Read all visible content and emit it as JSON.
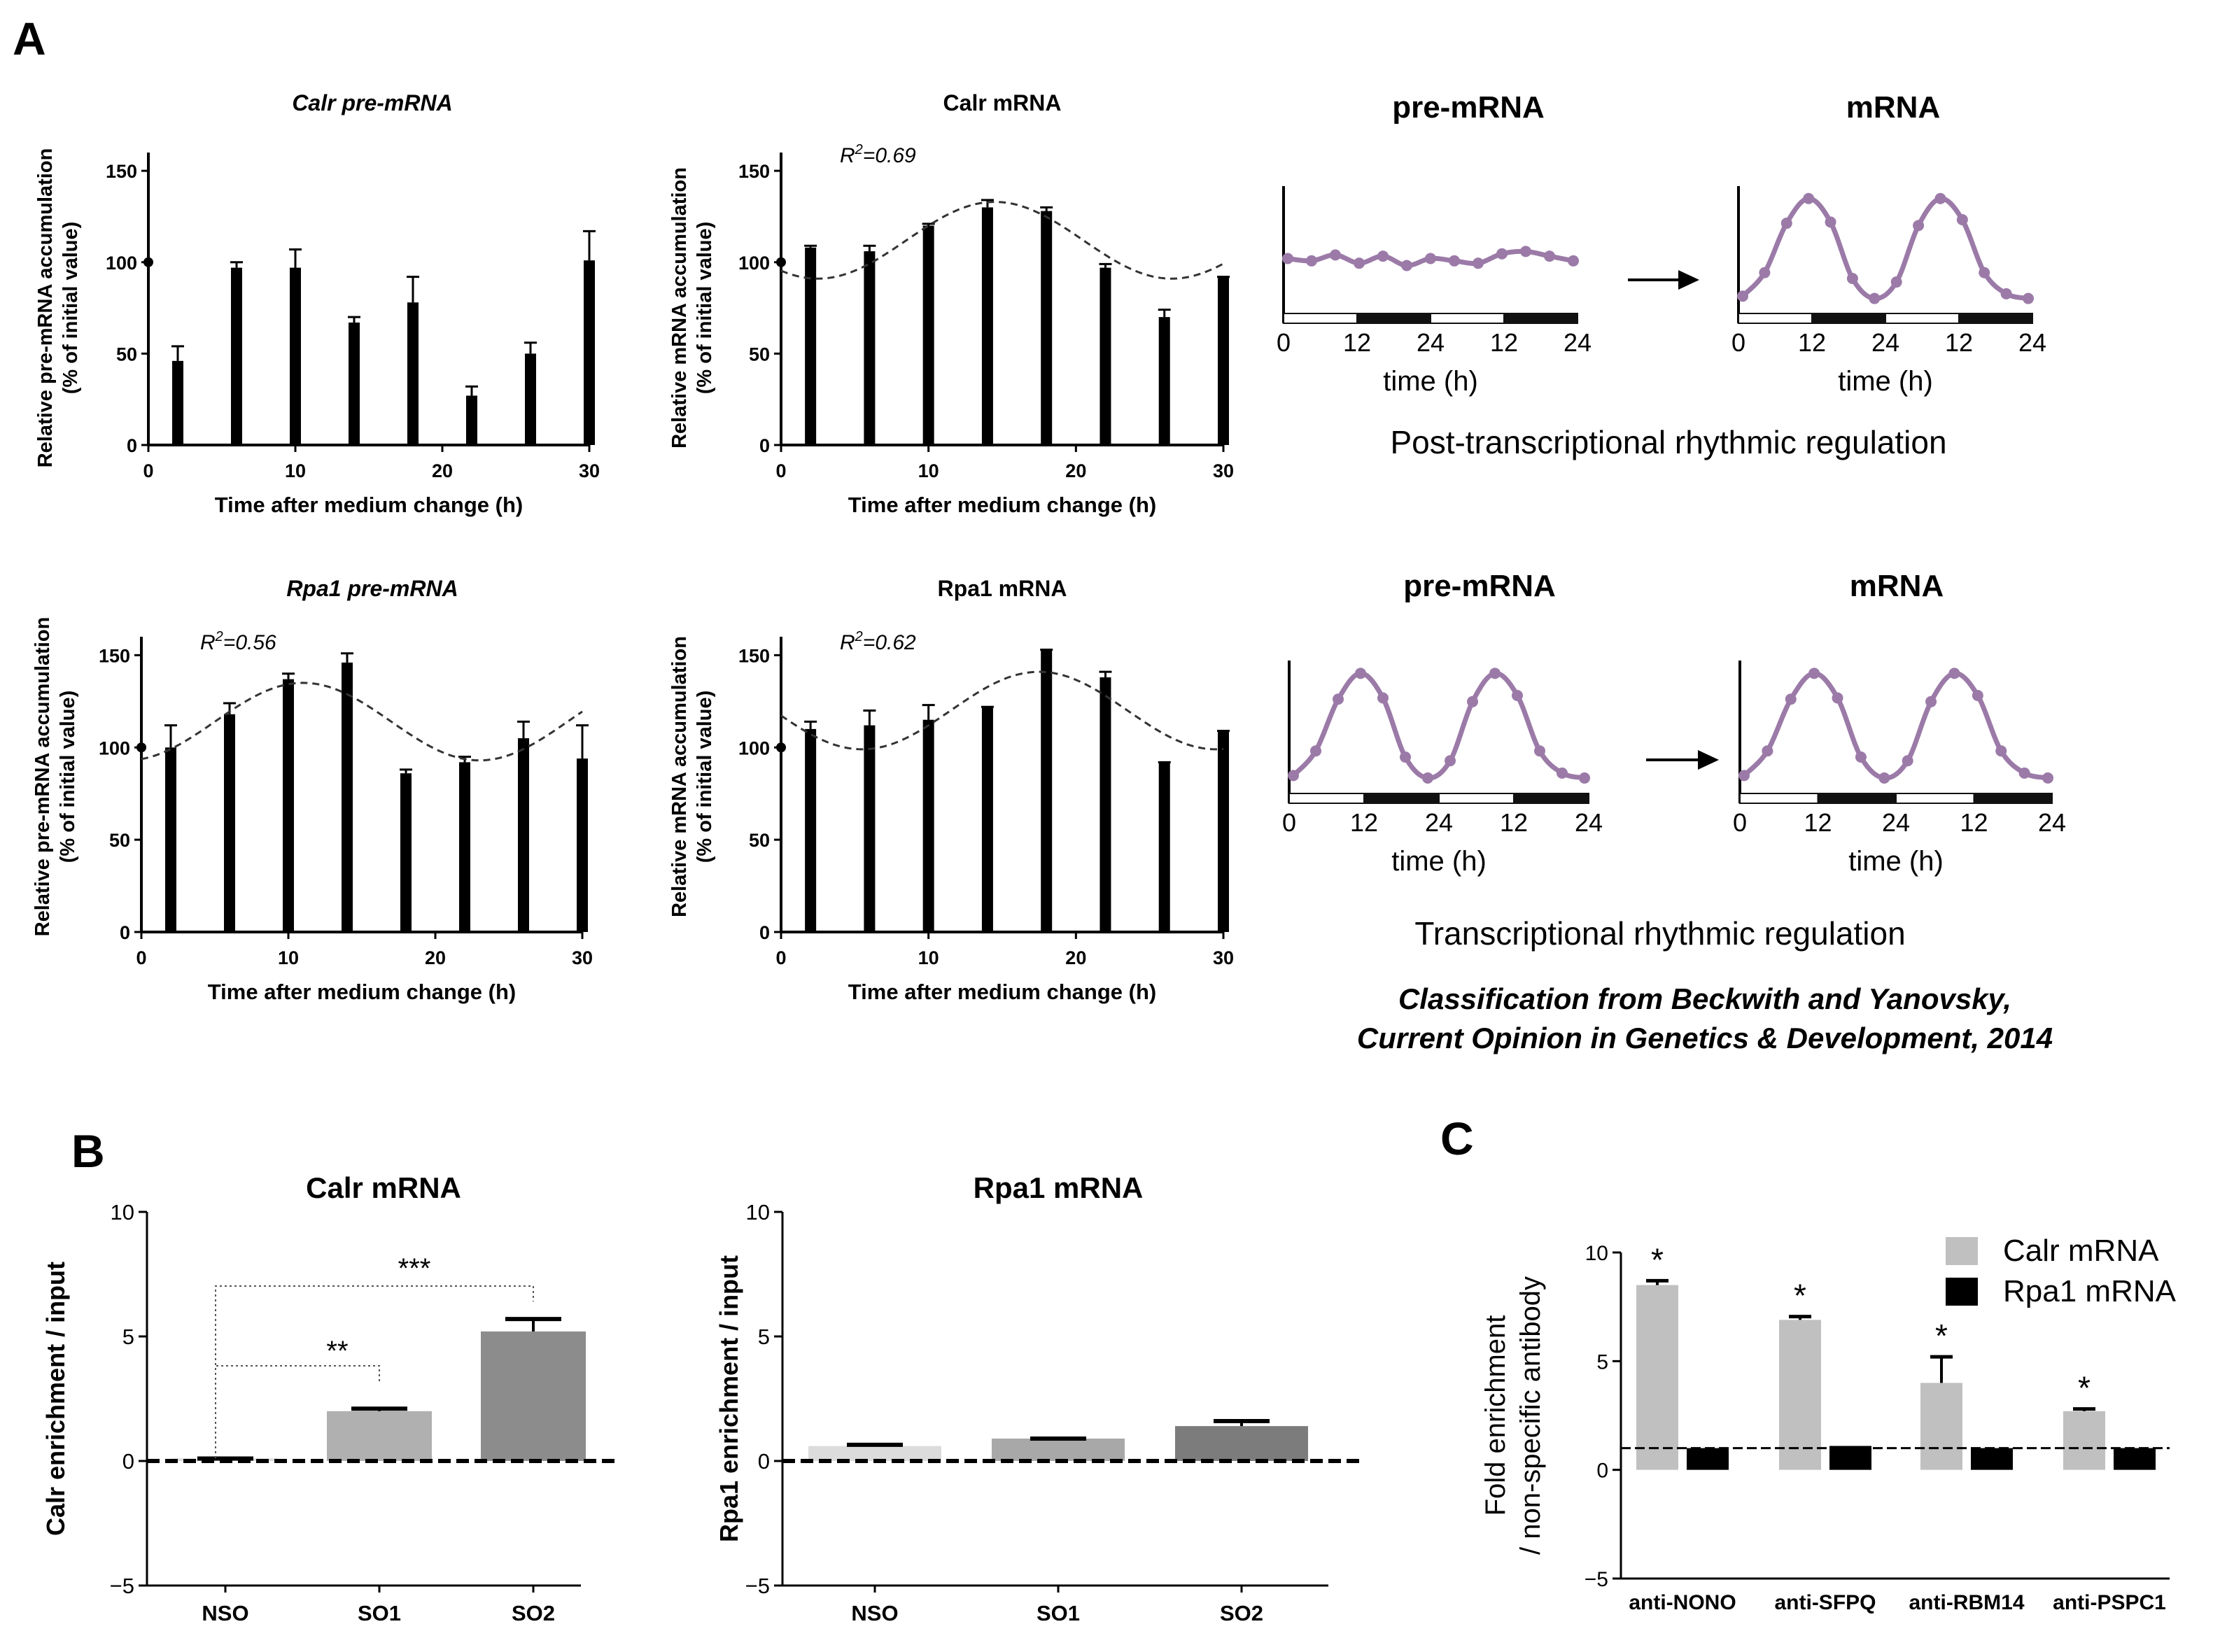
{
  "panels": {
    "a": "A",
    "b": "B",
    "c": "C"
  },
  "chart_data": [
    {
      "id": "calr_pre",
      "type": "bar",
      "title": "Calr pre-mRNA",
      "title_italic": true,
      "xlabel": "Time after medium change (h)",
      "ylabel": [
        "Relative pre-mRNA accumulation",
        "(% of initial value)"
      ],
      "xlim": [
        0,
        30
      ],
      "ylim": [
        0,
        160
      ],
      "xticks": [
        0,
        10,
        20,
        30
      ],
      "yticks": [
        0,
        50,
        100,
        150
      ],
      "x": [
        0,
        2,
        6,
        10,
        14,
        18,
        22,
        26,
        30
      ],
      "values": [
        100,
        46,
        97,
        97,
        67,
        78,
        27,
        50,
        101
      ],
      "errors": [
        0,
        8,
        3,
        10,
        3,
        14,
        5,
        6,
        16
      ],
      "fit": null
    },
    {
      "id": "calr_mrna",
      "type": "bar",
      "title": "Calr mRNA",
      "title_italic": false,
      "r2_prefix": "R",
      "r2_sup": "2",
      "r2_value": "=0.69",
      "xlabel": "Time after medium change (h)",
      "ylabel": [
        "Relative mRNA accumulation",
        "(% of initial value)"
      ],
      "xlim": [
        0,
        30
      ],
      "ylim": [
        0,
        160
      ],
      "xticks": [
        0,
        10,
        20,
        30
      ],
      "yticks": [
        0,
        50,
        100,
        150
      ],
      "x": [
        0,
        2,
        6,
        10,
        14,
        18,
        22,
        26,
        30
      ],
      "values": [
        100,
        108,
        106,
        120,
        130,
        128,
        97,
        70,
        92
      ],
      "errors": [
        0,
        1,
        3,
        1,
        4,
        2,
        2,
        4,
        0
      ],
      "fit": {
        "mean": 112,
        "amplitude": 21,
        "peak_h": 14.5,
        "period_h": 24
      }
    },
    {
      "id": "rpa1_pre",
      "type": "bar",
      "title": "Rpa1 pre-mRNA",
      "title_italic": true,
      "r2_prefix": "R",
      "r2_sup": "2",
      "r2_value": "=0.56",
      "xlabel": "Time after medium change (h)",
      "ylabel": [
        "Relative pre-mRNA accumulation",
        "(% of initial value)"
      ],
      "xlim": [
        0,
        30
      ],
      "ylim": [
        0,
        160
      ],
      "xticks": [
        0,
        10,
        20,
        30
      ],
      "yticks": [
        0,
        50,
        100,
        150
      ],
      "x": [
        0,
        2,
        6,
        10,
        14,
        18,
        22,
        26,
        30
      ],
      "values": [
        100,
        100,
        118,
        137,
        146,
        86,
        92,
        105,
        94
      ],
      "errors": [
        0,
        12,
        6,
        3,
        5,
        2,
        3,
        9,
        18
      ],
      "fit": {
        "mean": 114,
        "amplitude": 21,
        "peak_h": 11,
        "period_h": 24
      }
    },
    {
      "id": "rpa1_mrna",
      "type": "bar",
      "title": "Rpa1 mRNA",
      "title_italic": false,
      "r2_prefix": "R",
      "r2_sup": "2",
      "r2_value": "=0.62",
      "xlabel": "Time after medium change (h)",
      "ylabel": [
        "Relative mRNA accumulation",
        "(% of initial value)"
      ],
      "xlim": [
        0,
        30
      ],
      "ylim": [
        0,
        160
      ],
      "xticks": [
        0,
        10,
        20,
        30
      ],
      "yticks": [
        0,
        50,
        100,
        150
      ],
      "x": [
        0,
        2,
        6,
        10,
        14,
        18,
        22,
        26,
        30
      ],
      "values": [
        100,
        110,
        112,
        115,
        122,
        153,
        138,
        92,
        109
      ],
      "errors": [
        0,
        4,
        8,
        8,
        0,
        0,
        3,
        0,
        0
      ],
      "fit": {
        "mean": 120,
        "amplitude": 21,
        "peak_h": 17.5,
        "period_h": 24
      }
    },
    {
      "id": "calr_enrich",
      "type": "bar",
      "title": "Calr mRNA",
      "ylabel": "Calr enrichment / input",
      "ylim": [
        -5,
        10
      ],
      "yticks": [
        -5,
        0,
        5,
        10
      ],
      "categories": [
        "NSO",
        "SO1",
        "SO2"
      ],
      "values": [
        0.1,
        2.0,
        5.2
      ],
      "errors": [
        0,
        0.1,
        0.5
      ],
      "colors": [
        "#dcdcdc",
        "#b0b0b0",
        "#8c8c8c"
      ],
      "significance": [
        {
          "from": "NSO",
          "to": "SO1",
          "label": "**"
        },
        {
          "from": "NSO",
          "to": "SO2",
          "label": "***"
        }
      ]
    },
    {
      "id": "rpa1_enrich",
      "type": "bar",
      "title": "Rpa1 mRNA",
      "ylabel": "Rpa1 enrichment / input",
      "ylim": [
        -5,
        10
      ],
      "yticks": [
        -5,
        0,
        5,
        10
      ],
      "categories": [
        "NSO",
        "SO1",
        "SO2"
      ],
      "values": [
        0.6,
        0.9,
        1.4
      ],
      "errors": [
        0.05,
        0,
        0.2
      ],
      "colors": [
        "#dcdcdc",
        "#a8a8a8",
        "#7c7c7c"
      ]
    },
    {
      "id": "fold_enrich",
      "type": "bar",
      "ylabel": [
        "Fold enrichment",
        "/ non-specific antibody"
      ],
      "ylim": [
        -5,
        10
      ],
      "yticks": [
        -5,
        0,
        5,
        10
      ],
      "reference_line": 1,
      "categories": [
        "anti-NONO",
        "anti-SFPQ",
        "anti-RBM14",
        "anti-PSPC1"
      ],
      "series": [
        {
          "name": "Calr mRNA",
          "color": "#c0c0c0",
          "values": [
            8.5,
            6.9,
            4.0,
            2.7
          ],
          "errors": [
            0.2,
            0.15,
            1.2,
            0.1
          ],
          "marks": [
            "*",
            "*",
            "*",
            "*"
          ]
        },
        {
          "name": "Rpa1 mRNA",
          "color": "#000000",
          "values": [
            1.0,
            1.1,
            1.0,
            1.0
          ],
          "errors": [
            0,
            0,
            0,
            0
          ]
        }
      ]
    }
  ],
  "schematic": {
    "top": {
      "title_pre": "pre-mRNA",
      "title_mrna": "mRNA",
      "pre_pattern": "flat",
      "mrna_pattern": "rhythmic",
      "tick_labels": [
        "0",
        "12",
        "24",
        "12",
        "24"
      ],
      "xlabel": "time (h)",
      "caption": "Post-transcriptional rhythmic regulation"
    },
    "bottom": {
      "title_pre": "pre-mRNA",
      "title_mrna": "mRNA",
      "pre_pattern": "rhythmic",
      "mrna_pattern": "rhythmic",
      "tick_labels": [
        "0",
        "12",
        "24",
        "12",
        "24"
      ],
      "xlabel": "time (h)",
      "caption": "Transcriptional rhythmic regulation"
    },
    "citation_line1": "Classification from  Beckwith and Yanovsky,",
    "citation_line2": "Current Opinion in Genetics & Development, 2014",
    "curve_color": "#9b7aa8",
    "flat_values": [
      0.42,
      0.4,
      0.45,
      0.38,
      0.44,
      0.36,
      0.42,
      0.4,
      0.38,
      0.46,
      0.48,
      0.44,
      0.4
    ],
    "rhythmic_values": [
      0.1,
      0.3,
      0.72,
      0.93,
      0.73,
      0.25,
      0.08,
      0.22,
      0.7,
      0.93,
      0.75,
      0.3,
      0.12,
      0.08
    ]
  }
}
